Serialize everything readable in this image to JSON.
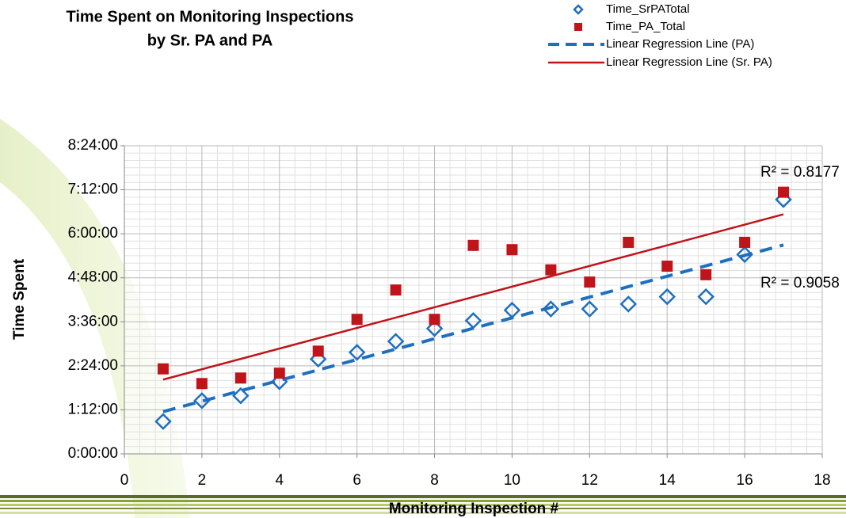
{
  "chart_data": {
    "type": "scatter",
    "title": "Time Spent on Monitoring Inspections",
    "subtitle": "by Sr. PA and PA",
    "x_label": "Monitoring Inspection #",
    "y_label": "Time Spent",
    "x": [
      1,
      2,
      3,
      4,
      5,
      6,
      7,
      8,
      9,
      10,
      11,
      12,
      13,
      14,
      15,
      16,
      17
    ],
    "series": [
      {
        "name": "Time_SrPATotal",
        "color": "#1f6fbf",
        "marker": "diamond",
        "values": [
          53,
          87,
          95,
          118,
          155,
          166,
          184,
          205,
          218,
          235,
          237,
          237,
          245,
          257,
          257,
          326,
          416
        ],
        "trendline": {
          "name": "Linear Regression Line (PA)",
          "color": "#1f6fbf",
          "style": "dashed",
          "r2_label": "R² = 0.9058"
        }
      },
      {
        "name": "Time_PA_Total",
        "color": "#c0141b",
        "marker": "square",
        "values": [
          139,
          115,
          124,
          132,
          168,
          220,
          268,
          220,
          341,
          334,
          301,
          281,
          346,
          307,
          293,
          346,
          428
        ],
        "trendline": {
          "name": "Linear Regression Line (Sr. PA)",
          "color": "#c0141b",
          "style": "solid",
          "r2_label": "R² = 0.8177"
        }
      }
    ],
    "xlim": [
      0,
      18
    ],
    "xticks": [
      0,
      2,
      4,
      6,
      8,
      10,
      12,
      14,
      16,
      18
    ],
    "ylim": [
      0,
      504
    ],
    "yticks": [
      {
        "value": 0,
        "label": "0:00:00"
      },
      {
        "value": 72,
        "label": "1:12:00"
      },
      {
        "value": 144,
        "label": "2:24:00"
      },
      {
        "value": 216,
        "label": "3:36:00"
      },
      {
        "value": 288,
        "label": "4:48:00"
      },
      {
        "value": 360,
        "label": "6:00:00"
      },
      {
        "value": 432,
        "label": "7:12:00"
      },
      {
        "value": 504,
        "label": "8:24:00"
      }
    ],
    "grid": true
  }
}
